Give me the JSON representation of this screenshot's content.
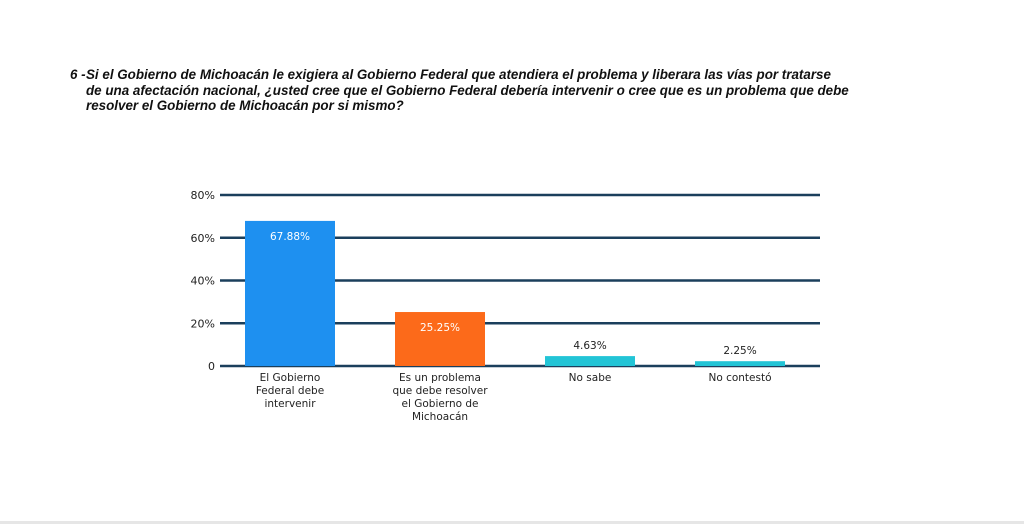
{
  "question": {
    "number": "6 -",
    "line1": "Si el Gobierno de Michoacán le exigiera al Gobierno Federal que atendiera el problema y liberara las vías por tratarse",
    "line2": "de una afectación nacional, ¿usted cree que el Gobierno Federal debería intervenir o cree que es un problema que debe",
    "line3": "resolver el Gobierno de Michoacán por si mismo?"
  },
  "chart_data": {
    "type": "bar",
    "categories": [
      [
        "El Gobierno",
        "Federal debe",
        "intervenir"
      ],
      [
        "Es un problema",
        "que debe resolver",
        "el Gobierno de",
        "Michoacán"
      ],
      [
        "No sabe"
      ],
      [
        "No contestó"
      ]
    ],
    "values": [
      67.88,
      25.25,
      4.63,
      2.25
    ],
    "data_labels": [
      "67.88%",
      "25.25%",
      "4.63%",
      "2.25%"
    ],
    "colors": [
      "#1e90f0",
      "#fc6a1a",
      "#22c4d6",
      "#22c4d6"
    ],
    "label_inside": [
      true,
      true,
      false,
      false
    ],
    "yticks": [
      0,
      20,
      40,
      60,
      80
    ],
    "ytick_labels": [
      "0",
      "20%",
      "40%",
      "60%",
      "80%"
    ],
    "ylim": [
      0,
      80
    ],
    "grid": true,
    "grid_color": "#1b3f5c"
  }
}
